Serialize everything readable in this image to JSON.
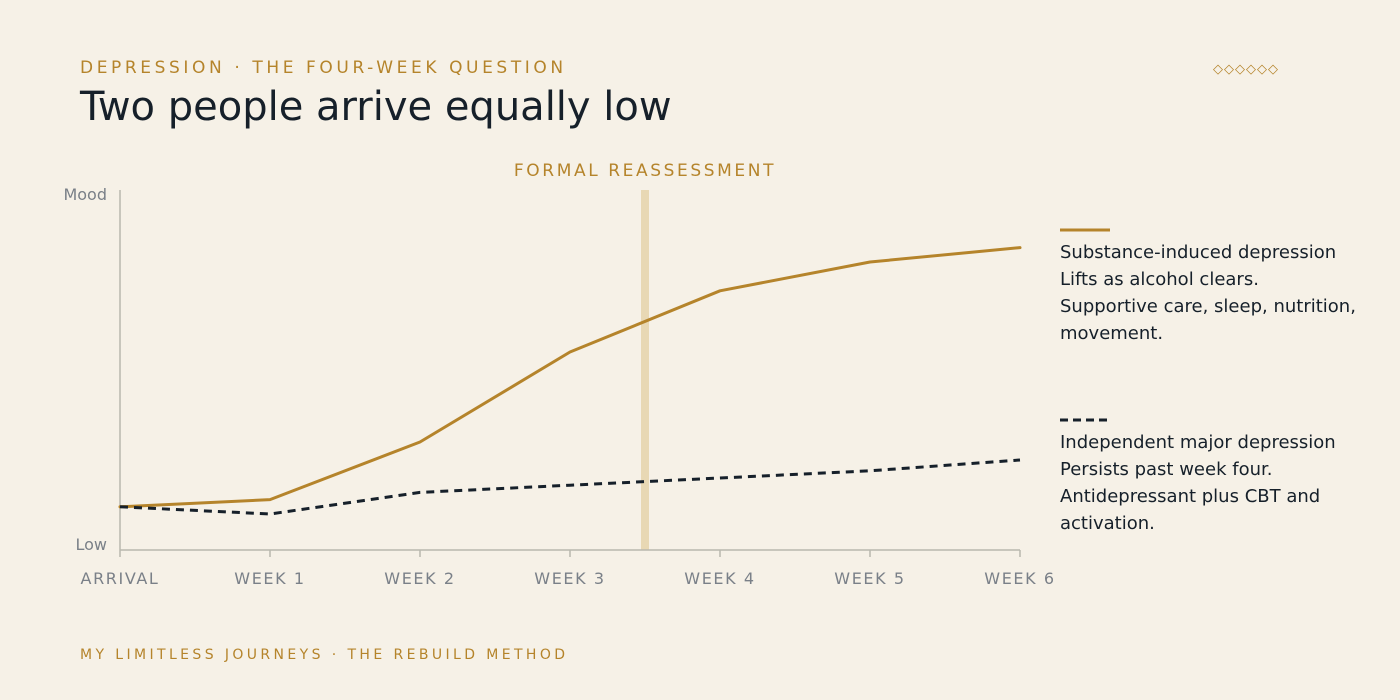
{
  "header": {
    "eyebrow": "DEPRESSION · THE FOUR-WEEK QUESTION",
    "title": "Two people arrive equally low",
    "ornament": "◇◇◇◇◇◇"
  },
  "footer": {
    "text": "MY LIMITLESS JOURNEYS · THE REBUILD METHOD"
  },
  "colors": {
    "accent": "#b5842b",
    "ink": "#16202a",
    "muted": "#7a8088",
    "background": "#f6f1e7",
    "band": "#e8d8b4"
  },
  "chart_data": {
    "type": "line",
    "categories": [
      "ARRIVAL",
      "WEEK 1",
      "WEEK 2",
      "WEEK 3",
      "WEEK 4",
      "WEEK 5",
      "WEEK 6"
    ],
    "ylabel_top": "Mood",
    "ylabel_bottom": "Low",
    "ylim": [
      0,
      100
    ],
    "annotation": {
      "label": "FORMAL REASSESSMENT",
      "x": 3.5
    },
    "series": [
      {
        "name": "Substance-induced depression",
        "description": "Lifts as alcohol clears. Supportive care, sleep, nutrition, movement.",
        "style": "solid",
        "color": "#b5842b",
        "values": [
          12,
          14,
          30,
          55,
          72,
          80,
          84
        ]
      },
      {
        "name": "Independent major depression",
        "description": "Persists past week four. Antidepressant plus CBT and activation.",
        "style": "dashed",
        "color": "#16202a",
        "values": [
          12,
          10,
          16,
          18,
          20,
          22,
          25
        ]
      }
    ]
  }
}
